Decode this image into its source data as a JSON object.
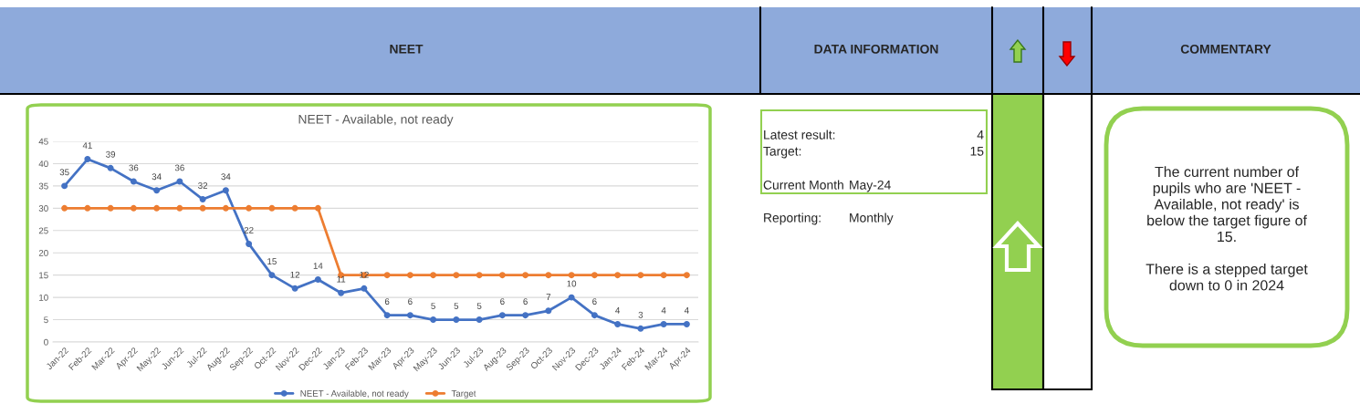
{
  "chart_data": [
    {
      "type": "line",
      "title": "NEET - Available, not ready",
      "annotations": [
        "NEET"
      ],
      "categories": [
        "Jan-22",
        "Feb-22",
        "Mar-22",
        "Apr-22",
        "May-22",
        "Jun-22",
        "Jul-22",
        "Aug-22",
        "Sep-22",
        "Oct-22",
        "Nov-22",
        "Dec-22",
        "Jan-23",
        "Feb-23",
        "Mar-23",
        "Apr-23",
        "May-23",
        "Jun-23",
        "Jul-23",
        "Aug-23",
        "Sep-23",
        "Oct-23",
        "Nov-23",
        "Dec-23",
        "Jan-24",
        "Feb-24",
        "Mar-24",
        "Apr-24"
      ],
      "series": [
        {
          "name": "NEET - Available, not ready",
          "color": "#4472c4",
          "values": [
            35,
            41,
            39,
            36,
            34,
            36,
            32,
            34,
            22,
            15,
            12,
            14,
            11,
            12,
            6,
            6,
            5,
            5,
            5,
            6,
            6,
            7,
            10,
            6,
            4,
            3,
            4,
            4
          ],
          "value_labels": [
            "35",
            "41",
            "39",
            "36",
            "34",
            "36",
            "32",
            "34",
            "22",
            "15",
            "12",
            "14",
            "11",
            "12",
            "6",
            "6",
            "5",
            "5",
            "5",
            "6",
            "6",
            "7",
            "10",
            "6",
            "4",
            "3",
            "4",
            "4"
          ]
        },
        {
          "name": "Target",
          "color": "#ed7d31",
          "values": [
            30,
            30,
            30,
            30,
            30,
            30,
            30,
            30,
            30,
            30,
            30,
            30,
            15,
            15,
            15,
            15,
            15,
            15,
            15,
            15,
            15,
            15,
            15,
            15,
            15,
            15,
            15,
            15
          ]
        }
      ],
      "ylim": [
        0,
        45
      ],
      "yticks": [
        0,
        5,
        10,
        15,
        20,
        25,
        30,
        35,
        40,
        45
      ],
      "grid": "y",
      "legend": "bottom",
      "marker": "circle",
      "line_style": "solid"
    },
    {
      "type": "other",
      "annotations": [
        "DATA INFORMATION",
        "Latest result:",
        "4",
        "Target:",
        "15",
        "Current Month",
        "May-24",
        "Reporting:",
        "Monthly",
        "COMMENTARY",
        "The current number of\npupils who are 'NEET -\nAvailable, not ready' is\nbelow the target figure of\n15.\n\nThere is a stepped target\ndown to 0 in 2024"
      ]
    }
  ]
}
